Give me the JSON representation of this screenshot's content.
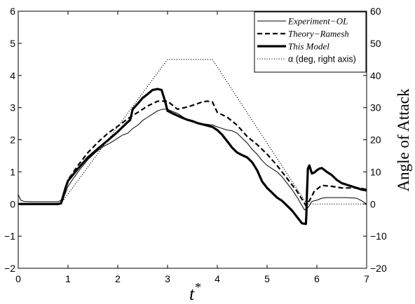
{
  "chart_data": {
    "type": "line",
    "xlabel": "t",
    "xlabel_sup": "*",
    "ylabel": "",
    "y2label": "Angle of Attack",
    "xlim": [
      0,
      7
    ],
    "ylim": [
      -2,
      6
    ],
    "y2lim": [
      -20,
      60
    ],
    "xticks": [
      "0",
      "1",
      "2",
      "3",
      "4",
      "5",
      "6",
      "7"
    ],
    "yticks": [
      "−2",
      "−1",
      "0",
      "1",
      "2",
      "3",
      "4",
      "5",
      "6"
    ],
    "y2ticks": [
      "−20",
      "−10",
      "0",
      "10",
      "20",
      "30",
      "40",
      "50",
      "60"
    ],
    "grid": false,
    "legend_position": "top-right",
    "series": [
      {
        "name": "Experiment−OL",
        "style": "thin-solid",
        "color": "#000000",
        "axis": "left",
        "points": [
          [
            0,
            0.3
          ],
          [
            0.05,
            0.12
          ],
          [
            0.12,
            0.08
          ],
          [
            0.3,
            0.07
          ],
          [
            0.6,
            0.07
          ],
          [
            0.8,
            0.07
          ],
          [
            0.9,
            0.15
          ],
          [
            1.0,
            0.55
          ],
          [
            1.1,
            0.78
          ],
          [
            1.25,
            1.1
          ],
          [
            1.4,
            1.38
          ],
          [
            1.55,
            1.6
          ],
          [
            1.7,
            1.78
          ],
          [
            1.85,
            1.9
          ],
          [
            2.0,
            2.05
          ],
          [
            2.1,
            2.15
          ],
          [
            2.2,
            2.2
          ],
          [
            2.3,
            2.35
          ],
          [
            2.4,
            2.45
          ],
          [
            2.5,
            2.6
          ],
          [
            2.6,
            2.7
          ],
          [
            2.7,
            2.8
          ],
          [
            2.8,
            2.9
          ],
          [
            2.9,
            2.95
          ],
          [
            3.0,
            2.95
          ],
          [
            3.1,
            2.88
          ],
          [
            3.2,
            2.82
          ],
          [
            3.3,
            2.72
          ],
          [
            3.4,
            2.62
          ],
          [
            3.5,
            2.55
          ],
          [
            3.6,
            2.52
          ],
          [
            3.7,
            2.5
          ],
          [
            3.8,
            2.48
          ],
          [
            3.9,
            2.46
          ],
          [
            4.0,
            2.4
          ],
          [
            4.1,
            2.35
          ],
          [
            4.2,
            2.3
          ],
          [
            4.3,
            2.28
          ],
          [
            4.4,
            2.2
          ],
          [
            4.5,
            2.05
          ],
          [
            4.6,
            1.9
          ],
          [
            4.7,
            1.7
          ],
          [
            4.8,
            1.55
          ],
          [
            4.9,
            1.35
          ],
          [
            5.0,
            1.2
          ],
          [
            5.1,
            1.1
          ],
          [
            5.2,
            1.0
          ],
          [
            5.3,
            0.85
          ],
          [
            5.4,
            0.65
          ],
          [
            5.5,
            0.45
          ],
          [
            5.6,
            0.22
          ],
          [
            5.7,
            -0.05
          ],
          [
            5.75,
            -0.18
          ],
          [
            5.8,
            -0.15
          ],
          [
            5.85,
            -0.05
          ],
          [
            5.9,
            0.08
          ],
          [
            6.0,
            0.12
          ],
          [
            6.1,
            0.18
          ],
          [
            6.2,
            0.2
          ],
          [
            6.4,
            0.2
          ],
          [
            6.6,
            0.2
          ],
          [
            6.8,
            0.18
          ],
          [
            6.9,
            0.1
          ],
          [
            7.0,
            0.0
          ]
        ]
      },
      {
        "name": "Theory−Ramesh",
        "style": "dashed",
        "color": "#000000",
        "axis": "left",
        "points": [
          [
            0,
            0
          ],
          [
            0.8,
            0
          ],
          [
            0.88,
            0.05
          ],
          [
            1.0,
            0.75
          ],
          [
            1.2,
            1.2
          ],
          [
            1.4,
            1.6
          ],
          [
            1.6,
            1.92
          ],
          [
            1.8,
            2.2
          ],
          [
            2.0,
            2.42
          ],
          [
            2.2,
            2.65
          ],
          [
            2.4,
            2.85
          ],
          [
            2.6,
            3.05
          ],
          [
            2.8,
            3.2
          ],
          [
            3.0,
            3.2
          ],
          [
            3.2,
            2.95
          ],
          [
            3.4,
            3.02
          ],
          [
            3.6,
            3.12
          ],
          [
            3.7,
            3.18
          ],
          [
            3.8,
            3.2
          ],
          [
            3.9,
            3.18
          ],
          [
            4.0,
            2.85
          ],
          [
            4.2,
            2.7
          ],
          [
            4.4,
            2.45
          ],
          [
            4.6,
            2.1
          ],
          [
            4.8,
            1.85
          ],
          [
            5.0,
            1.55
          ],
          [
            5.2,
            1.2
          ],
          [
            5.4,
            0.8
          ],
          [
            5.6,
            0.4
          ],
          [
            5.7,
            0.15
          ],
          [
            5.78,
            -0.05
          ],
          [
            5.85,
            0.1
          ],
          [
            5.95,
            0.4
          ],
          [
            6.1,
            0.58
          ],
          [
            6.3,
            0.55
          ],
          [
            6.5,
            0.5
          ],
          [
            6.7,
            0.5
          ],
          [
            6.85,
            0.5
          ],
          [
            7.0,
            0.45
          ]
        ]
      },
      {
        "name": "This Model",
        "style": "thick-solid",
        "color": "#000000",
        "axis": "left",
        "points": [
          [
            0,
            0
          ],
          [
            0.8,
            0
          ],
          [
            0.86,
            0.02
          ],
          [
            0.95,
            0.5
          ],
          [
            1.0,
            0.72
          ],
          [
            1.2,
            1.1
          ],
          [
            1.4,
            1.45
          ],
          [
            1.6,
            1.72
          ],
          [
            1.8,
            1.98
          ],
          [
            2.0,
            2.25
          ],
          [
            2.2,
            2.55
          ],
          [
            2.25,
            2.62
          ],
          [
            2.3,
            2.95
          ],
          [
            2.4,
            3.12
          ],
          [
            2.5,
            3.3
          ],
          [
            2.6,
            3.42
          ],
          [
            2.7,
            3.55
          ],
          [
            2.8,
            3.58
          ],
          [
            2.88,
            3.55
          ],
          [
            2.95,
            3.2
          ],
          [
            3.0,
            2.9
          ],
          [
            3.1,
            2.82
          ],
          [
            3.2,
            2.75
          ],
          [
            3.3,
            2.68
          ],
          [
            3.4,
            2.62
          ],
          [
            3.5,
            2.58
          ],
          [
            3.6,
            2.52
          ],
          [
            3.7,
            2.48
          ],
          [
            3.8,
            2.44
          ],
          [
            3.9,
            2.4
          ],
          [
            4.0,
            2.3
          ],
          [
            4.1,
            2.15
          ],
          [
            4.2,
            1.95
          ],
          [
            4.3,
            1.75
          ],
          [
            4.4,
            1.6
          ],
          [
            4.5,
            1.52
          ],
          [
            4.6,
            1.45
          ],
          [
            4.7,
            1.3
          ],
          [
            4.8,
            1.05
          ],
          [
            4.9,
            0.7
          ],
          [
            5.0,
            0.5
          ],
          [
            5.1,
            0.35
          ],
          [
            5.2,
            0.2
          ],
          [
            5.3,
            0.1
          ],
          [
            5.4,
            -0.05
          ],
          [
            5.5,
            -0.2
          ],
          [
            5.6,
            -0.4
          ],
          [
            5.7,
            -0.6
          ],
          [
            5.78,
            -0.62
          ],
          [
            5.79,
            -0.3
          ],
          [
            5.8,
            0.3
          ],
          [
            5.82,
            1.1
          ],
          [
            5.85,
            1.2
          ],
          [
            5.9,
            0.95
          ],
          [
            5.95,
            0.98
          ],
          [
            6.0,
            1.05
          ],
          [
            6.05,
            1.1
          ],
          [
            6.1,
            1.12
          ],
          [
            6.2,
            1.0
          ],
          [
            6.3,
            0.9
          ],
          [
            6.4,
            0.75
          ],
          [
            6.5,
            0.65
          ],
          [
            6.6,
            0.6
          ],
          [
            6.7,
            0.55
          ],
          [
            6.8,
            0.5
          ],
          [
            6.9,
            0.45
          ],
          [
            7.0,
            0.42
          ]
        ]
      },
      {
        "name": "α (deg, right axis)",
        "style": "dotted",
        "color": "#000000",
        "axis": "right",
        "points": [
          [
            0,
            0
          ],
          [
            0.85,
            0
          ],
          [
            3.0,
            45
          ],
          [
            3.9,
            45
          ],
          [
            5.8,
            0
          ],
          [
            7,
            0
          ]
        ]
      }
    ]
  }
}
